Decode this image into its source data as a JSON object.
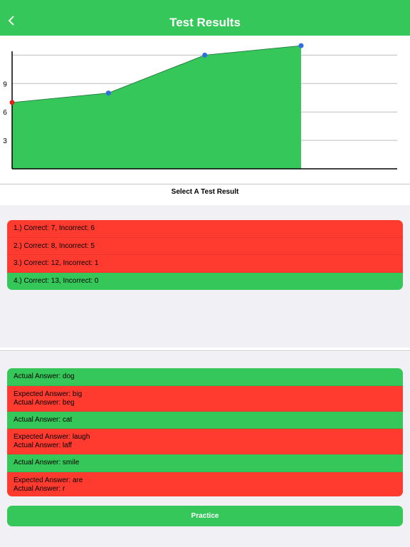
{
  "header": {
    "title": "Test Results",
    "back_icon": "chevron-left-icon"
  },
  "chart_data": {
    "type": "area",
    "x": [
      1,
      2,
      3,
      4
    ],
    "values": [
      7,
      8,
      12,
      13
    ],
    "yticks": [
      "3",
      "6",
      "9"
    ],
    "ylim": [
      0,
      14
    ],
    "grid": true,
    "fill_color": "#35c759",
    "first_point_color": "#e0231a",
    "point_color": "#2f6fe0"
  },
  "select_label": "Select A Test Result",
  "results": [
    {
      "label": "1.) Correct: 7, Incorrect: 6",
      "status": "red"
    },
    {
      "label": "2.) Correct: 8, Incorrect: 5",
      "status": "red"
    },
    {
      "label": "3.) Correct: 12, Incorrect: 1",
      "status": "red"
    },
    {
      "label": "4.) Correct: 13, Incorrect: 0",
      "status": "green"
    }
  ],
  "answers": [
    {
      "lines": [
        "Actual Answer: dog"
      ],
      "status": "green"
    },
    {
      "lines": [
        "Expected Answer: big",
        "Actual Answer: beg"
      ],
      "status": "red"
    },
    {
      "lines": [
        "Actual Answer: cat"
      ],
      "status": "green"
    },
    {
      "lines": [
        "Expected Answer: laugh",
        "Actual Answer: laff"
      ],
      "status": "red"
    },
    {
      "lines": [
        "Actual Answer: smile"
      ],
      "status": "green"
    },
    {
      "lines": [
        "Expected Answer: are",
        "Actual Answer: r"
      ],
      "status": "red"
    }
  ],
  "practice_label": "Practice",
  "colors": {
    "accent": "#35c759",
    "error": "#ff3b30"
  }
}
